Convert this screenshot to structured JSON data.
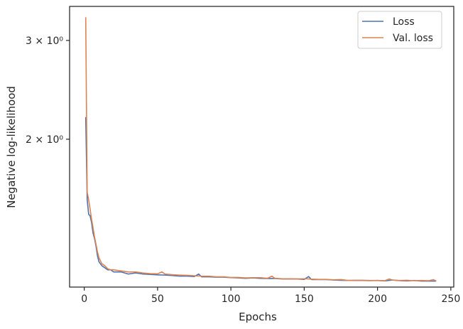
{
  "chart_data": {
    "type": "line",
    "xlabel": "Epochs",
    "ylabel": "Negative log-likelihood",
    "xlim": [
      -10,
      252
    ],
    "ylim": [
      1.09,
      3.45
    ],
    "yscale": "log",
    "xticks": [
      0,
      50,
      100,
      150,
      200,
      250
    ],
    "xtick_labels": [
      "0",
      "50",
      "100",
      "150",
      "200",
      "250"
    ],
    "yticks": [
      2,
      3
    ],
    "ytick_labels": [
      "2 × 10⁰",
      "3 × 10⁰"
    ],
    "grid": false,
    "legend": {
      "position": "top-right",
      "entries": [
        "Loss",
        "Val. loss"
      ]
    },
    "series": [
      {
        "name": "Loss",
        "color": "#4c72b0",
        "x": [
          1,
          2,
          3,
          4,
          5,
          6,
          7,
          8,
          9,
          10,
          12,
          14,
          16,
          18,
          20,
          25,
          30,
          35,
          40,
          45,
          50,
          55,
          60,
          65,
          70,
          75,
          78,
          80,
          85,
          90,
          95,
          100,
          105,
          110,
          115,
          120,
          125,
          130,
          135,
          140,
          145,
          150,
          153,
          155,
          160,
          165,
          170,
          175,
          180,
          185,
          190,
          195,
          200,
          205,
          210,
          215,
          220,
          225,
          230,
          235,
          240
        ],
        "values": [
          2.19,
          1.56,
          1.47,
          1.46,
          1.42,
          1.36,
          1.33,
          1.29,
          1.24,
          1.21,
          1.19,
          1.18,
          1.17,
          1.17,
          1.16,
          1.16,
          1.15,
          1.155,
          1.15,
          1.148,
          1.146,
          1.145,
          1.143,
          1.14,
          1.14,
          1.138,
          1.15,
          1.137,
          1.137,
          1.135,
          1.135,
          1.133,
          1.132,
          1.13,
          1.132,
          1.13,
          1.129,
          1.129,
          1.127,
          1.127,
          1.127,
          1.125,
          1.138,
          1.124,
          1.124,
          1.124,
          1.122,
          1.121,
          1.12,
          1.12,
          1.12,
          1.119,
          1.12,
          1.118,
          1.122,
          1.119,
          1.118,
          1.12,
          1.117,
          1.117,
          1.117
        ]
      },
      {
        "name": "Val. loss",
        "color": "#dd8452",
        "x": [
          1,
          2,
          3,
          4,
          5,
          6,
          7,
          8,
          9,
          10,
          12,
          14,
          16,
          18,
          20,
          25,
          30,
          35,
          40,
          45,
          50,
          53,
          55,
          60,
          65,
          70,
          75,
          80,
          85,
          90,
          95,
          100,
          105,
          110,
          115,
          120,
          125,
          128,
          130,
          135,
          140,
          145,
          150,
          155,
          160,
          165,
          170,
          175,
          180,
          185,
          190,
          195,
          200,
          205,
          208,
          210,
          215,
          220,
          225,
          230,
          235,
          238,
          240
        ],
        "values": [
          3.3,
          1.61,
          1.56,
          1.5,
          1.44,
          1.39,
          1.34,
          1.3,
          1.26,
          1.23,
          1.2,
          1.19,
          1.175,
          1.17,
          1.17,
          1.165,
          1.16,
          1.16,
          1.155,
          1.152,
          1.151,
          1.16,
          1.15,
          1.147,
          1.145,
          1.144,
          1.142,
          1.14,
          1.14,
          1.137,
          1.137,
          1.134,
          1.134,
          1.132,
          1.133,
          1.133,
          1.13,
          1.14,
          1.13,
          1.128,
          1.128,
          1.127,
          1.128,
          1.126,
          1.125,
          1.125,
          1.123,
          1.124,
          1.12,
          1.121,
          1.121,
          1.12,
          1.12,
          1.119,
          1.127,
          1.122,
          1.12,
          1.121,
          1.119,
          1.12,
          1.119,
          1.124,
          1.118
        ]
      }
    ]
  }
}
